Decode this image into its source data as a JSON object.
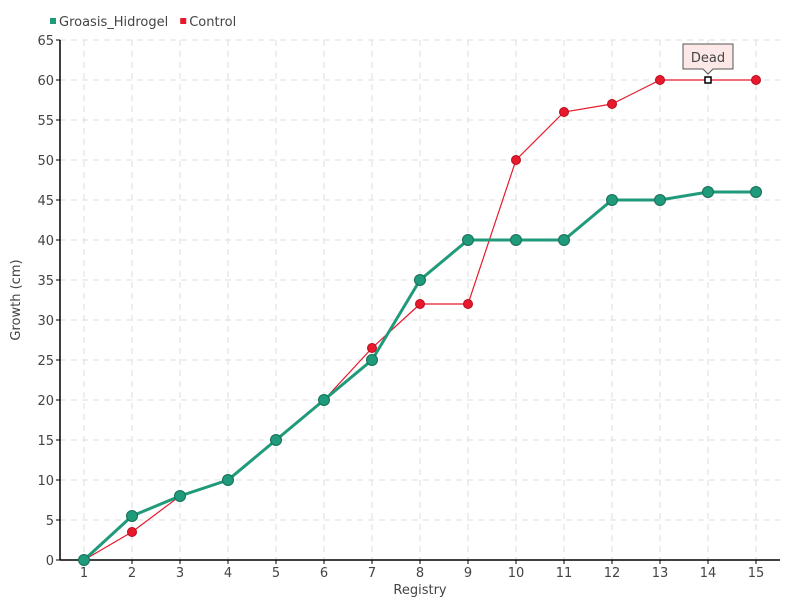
{
  "chart_data": {
    "type": "line",
    "title": "",
    "xlabel": "Registry",
    "ylabel": "Growth (cm)",
    "categories": [
      "1",
      "2",
      "3",
      "4",
      "5",
      "6",
      "7",
      "8",
      "9",
      "10",
      "11",
      "12",
      "13",
      "14",
      "15"
    ],
    "ylim": [
      0,
      65
    ],
    "yticks": [
      0,
      5,
      10,
      15,
      20,
      25,
      30,
      35,
      40,
      45,
      50,
      55,
      60,
      65
    ],
    "grid": true,
    "legend_position": "top-left",
    "series": [
      {
        "name": "Groasis_Hidrogel",
        "color": "#1f9a7a",
        "values": [
          0,
          5.5,
          8,
          10,
          15,
          20,
          25,
          35,
          40,
          40,
          40,
          45,
          45,
          46,
          46
        ]
      },
      {
        "name": "Control",
        "color": "#e8192c",
        "values": [
          0,
          3.5,
          8,
          10,
          15,
          20,
          26.5,
          32,
          32,
          50,
          56,
          57,
          60,
          60,
          60
        ]
      }
    ],
    "annotations": [
      {
        "series": "Control",
        "category": "14",
        "text": "Dead"
      }
    ]
  }
}
